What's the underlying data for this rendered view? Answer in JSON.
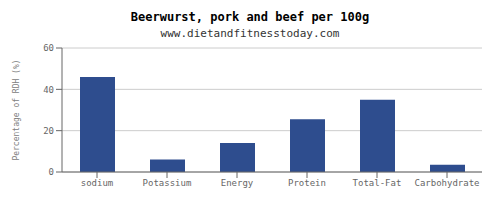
{
  "chart_data": {
    "type": "bar",
    "title": "Beerwurst, pork and beef per 100g",
    "subtitle": "www.dietandfitnesstoday.com",
    "categories": [
      "sodium",
      "Potassium",
      "Energy",
      "Protein",
      "Total-Fat",
      "Carbohydrate"
    ],
    "values": [
      46,
      6,
      14,
      25.5,
      35,
      3.5
    ],
    "color": "#2e4d8e",
    "ylabel": "Percentage of RDH (%)",
    "ylim": [
      0,
      60
    ],
    "yticks": [
      0,
      20,
      40,
      60
    ],
    "grid": true
  }
}
